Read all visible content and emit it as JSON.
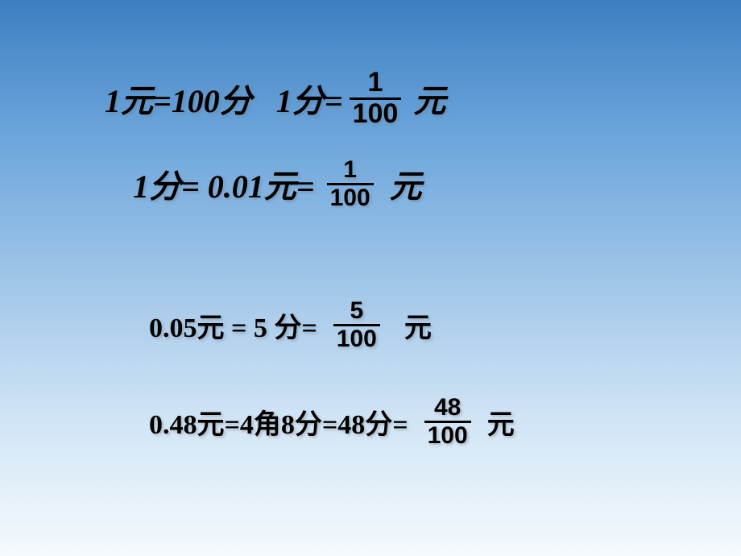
{
  "background": {
    "gradient_stops": [
      "#3d7fc1",
      "#6da6dc",
      "#9fc5e8",
      "#d0e4f5",
      "#f5fafd"
    ]
  },
  "text_style": {
    "color": "#000000",
    "font_weight": "bold",
    "shadow": "2px 2px 3px rgba(120,120,120,0.4)",
    "fraction_border_width": 3
  },
  "line1": {
    "part1": "1元=100分",
    "part2": "1分=",
    "fraction": {
      "num": "1",
      "den": "100"
    },
    "unit": "元",
    "main_fontsize": 40,
    "fraction_fontsize": 34
  },
  "line2": {
    "part1": "1分= 0.01元=",
    "fraction": {
      "num": "1",
      "den": "100"
    },
    "unit": "元",
    "main_fontsize": 40,
    "fraction_fontsize": 30
  },
  "line3": {
    "part1": "0.05元 = 5 分=",
    "fraction": {
      "num": "5",
      "den": "100"
    },
    "unit": "元",
    "main_fontsize": 34,
    "fraction_fontsize": 30
  },
  "line4": {
    "part1": "0.48元=4角8分=48分=",
    "fraction": {
      "num": "48",
      "den": "100"
    },
    "unit": "元",
    "main_fontsize": 34,
    "fraction_fontsize": 30
  }
}
